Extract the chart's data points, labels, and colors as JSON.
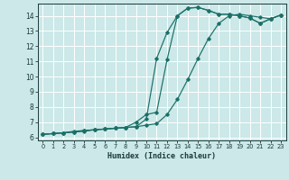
{
  "xlabel": "Humidex (Indice chaleur)",
  "bg_color": "#cce8e8",
  "grid_color": "#ffffff",
  "line_color": "#1a7068",
  "xlim": [
    -0.5,
    23.5
  ],
  "ylim": [
    5.8,
    14.8
  ],
  "xticks": [
    0,
    1,
    2,
    3,
    4,
    5,
    6,
    7,
    8,
    9,
    10,
    11,
    12,
    13,
    14,
    15,
    16,
    17,
    18,
    19,
    20,
    21,
    22,
    23
  ],
  "yticks": [
    6,
    7,
    8,
    9,
    10,
    11,
    12,
    13,
    14
  ],
  "series": [
    {
      "x": [
        0,
        1,
        2,
        3,
        4,
        5,
        6,
        7,
        8,
        9,
        10,
        11,
        12,
        13,
        14,
        15,
        16,
        17,
        18,
        19,
        20,
        21,
        22,
        23
      ],
      "y": [
        6.2,
        6.25,
        6.3,
        6.4,
        6.45,
        6.5,
        6.55,
        6.6,
        6.65,
        6.7,
        7.2,
        11.2,
        12.9,
        14.0,
        14.5,
        14.55,
        14.35,
        14.1,
        14.1,
        14.0,
        13.85,
        13.5,
        13.8,
        14.05
      ]
    },
    {
      "x": [
        0,
        1,
        2,
        3,
        4,
        5,
        6,
        7,
        8,
        9,
        10,
        11,
        12,
        13,
        14,
        15,
        16,
        17,
        18,
        19,
        20,
        21,
        22,
        23
      ],
      "y": [
        6.2,
        6.25,
        6.3,
        6.35,
        6.45,
        6.5,
        6.55,
        6.6,
        6.65,
        7.0,
        7.5,
        7.65,
        11.1,
        14.0,
        14.5,
        14.55,
        14.35,
        14.1,
        14.1,
        14.0,
        13.85,
        13.5,
        13.8,
        14.05
      ]
    },
    {
      "x": [
        0,
        1,
        2,
        3,
        4,
        5,
        6,
        7,
        8,
        9,
        10,
        11,
        12,
        13,
        14,
        15,
        16,
        17,
        18,
        19,
        20,
        21,
        22,
        23
      ],
      "y": [
        6.2,
        6.25,
        6.3,
        6.35,
        6.4,
        6.5,
        6.55,
        6.6,
        6.65,
        6.7,
        6.8,
        6.9,
        7.5,
        8.5,
        9.8,
        11.2,
        12.5,
        13.5,
        14.0,
        14.1,
        14.0,
        13.9,
        13.8,
        14.05
      ]
    }
  ]
}
